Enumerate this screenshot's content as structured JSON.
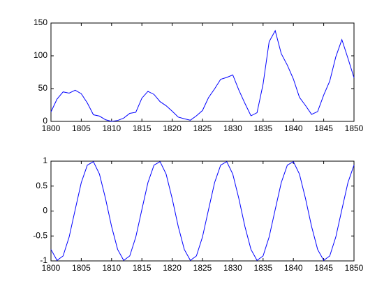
{
  "chart_data": [
    {
      "type": "line",
      "x": [
        1800,
        1801,
        1802,
        1803,
        1804,
        1805,
        1806,
        1807,
        1808,
        1809,
        1810,
        1811,
        1812,
        1813,
        1814,
        1815,
        1816,
        1817,
        1818,
        1819,
        1820,
        1821,
        1822,
        1823,
        1824,
        1825,
        1826,
        1827,
        1828,
        1829,
        1830,
        1831,
        1832,
        1833,
        1834,
        1835,
        1836,
        1837,
        1838,
        1839,
        1840,
        1841,
        1842,
        1843,
        1844,
        1845,
        1846,
        1847,
        1848,
        1849,
        1850
      ],
      "series": [
        {
          "color": "#0000ff",
          "values": [
            14.5,
            34.0,
            45.0,
            43.1,
            47.5,
            42.2,
            28.1,
            10.1,
            8.1,
            2.5,
            0.0,
            1.4,
            5.0,
            12.2,
            13.9,
            35.4,
            45.8,
            41.1,
            30.1,
            23.9,
            15.6,
            6.6,
            4.0,
            1.8,
            8.5,
            16.6,
            36.3,
            49.6,
            64.2,
            67.0,
            70.9,
            47.8,
            27.5,
            8.5,
            13.2,
            56.9,
            121.5,
            138.3,
            103.2,
            85.7,
            64.6,
            36.7,
            24.2,
            10.7,
            15.0,
            40.1,
            61.5,
            98.5,
            124.7,
            96.3,
            66.6
          ]
        }
      ],
      "xlim": [
        1800,
        1850
      ],
      "xticks": [
        1800,
        1805,
        1810,
        1815,
        1820,
        1825,
        1830,
        1835,
        1840,
        1845,
        1850
      ],
      "ylim": [
        0,
        150
      ],
      "yticks": [
        0,
        50,
        100,
        150
      ]
    },
    {
      "type": "line",
      "x": [
        1800,
        1801,
        1802,
        1803,
        1804,
        1805,
        1806,
        1807,
        1808,
        1809,
        1810,
        1811,
        1812,
        1813,
        1814,
        1815,
        1816,
        1817,
        1818,
        1819,
        1820,
        1821,
        1822,
        1823,
        1824,
        1825,
        1826,
        1827,
        1828,
        1829,
        1830,
        1831,
        1832,
        1833,
        1834,
        1835,
        1836,
        1837,
        1838,
        1839,
        1840,
        1841,
        1842,
        1843,
        1844,
        1845,
        1846,
        1847,
        1848,
        1849,
        1850
      ],
      "series": [
        {
          "color": "#0000ff",
          "values": [
            -0.77,
            -0.99,
            -0.9,
            -0.52,
            0.03,
            0.57,
            0.92,
            0.99,
            0.74,
            0.25,
            -0.31,
            -0.77,
            -0.99,
            -0.9,
            -0.52,
            0.03,
            0.57,
            0.92,
            0.99,
            0.74,
            0.25,
            -0.31,
            -0.77,
            -0.99,
            -0.9,
            -0.52,
            0.03,
            0.57,
            0.92,
            0.99,
            0.74,
            0.25,
            -0.31,
            -0.77,
            -0.99,
            -0.9,
            -0.52,
            0.03,
            0.57,
            0.92,
            0.99,
            0.74,
            0.25,
            -0.31,
            -0.77,
            -0.99,
            -0.9,
            -0.52,
            0.03,
            0.57,
            0.92
          ]
        }
      ],
      "xlim": [
        1800,
        1850
      ],
      "xticks": [
        1800,
        1805,
        1810,
        1815,
        1820,
        1825,
        1830,
        1835,
        1840,
        1845,
        1850
      ],
      "ylim": [
        -1,
        1
      ],
      "yticks": [
        -1,
        -0.5,
        0,
        0.5,
        1
      ]
    }
  ]
}
